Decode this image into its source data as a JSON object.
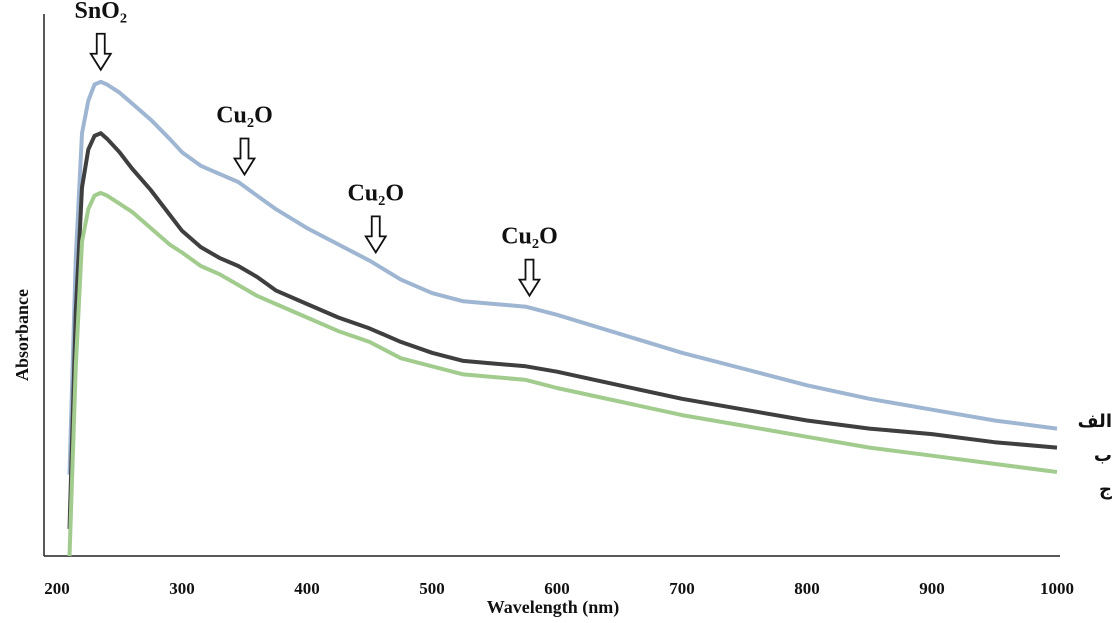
{
  "chart_data": {
    "type": "line",
    "title": "",
    "xlabel": "Wavelength (nm)",
    "ylabel": "Absorbance",
    "xlim": [
      200,
      1000
    ],
    "ylim": [
      0,
      1
    ],
    "xticks": [
      200,
      300,
      400,
      500,
      600,
      700,
      800,
      900,
      1000
    ],
    "grid": false,
    "legend": "right",
    "series": [
      {
        "name": "الف",
        "color": "#9fb6d3",
        "x": [
          210,
          215,
          220,
          225,
          230,
          235,
          240,
          250,
          260,
          275,
          290,
          300,
          315,
          330,
          345,
          360,
          375,
          400,
          425,
          450,
          475,
          500,
          525,
          550,
          575,
          600,
          650,
          700,
          750,
          800,
          850,
          900,
          950,
          1000
        ],
        "y": [
          0.15,
          0.55,
          0.78,
          0.84,
          0.87,
          0.875,
          0.87,
          0.855,
          0.835,
          0.805,
          0.77,
          0.745,
          0.72,
          0.705,
          0.69,
          0.665,
          0.64,
          0.605,
          0.575,
          0.545,
          0.51,
          0.485,
          0.47,
          0.465,
          0.46,
          0.445,
          0.41,
          0.375,
          0.345,
          0.315,
          0.29,
          0.27,
          0.25,
          0.235
        ]
      },
      {
        "name": "ب",
        "color": "#3f3f3f",
        "x": [
          210,
          215,
          220,
          225,
          230,
          235,
          240,
          250,
          260,
          275,
          290,
          300,
          315,
          330,
          345,
          360,
          375,
          400,
          425,
          450,
          475,
          500,
          525,
          550,
          575,
          600,
          650,
          700,
          750,
          800,
          850,
          900,
          950,
          1000
        ],
        "y": [
          0.05,
          0.45,
          0.68,
          0.75,
          0.775,
          0.78,
          0.77,
          0.745,
          0.715,
          0.675,
          0.63,
          0.6,
          0.57,
          0.55,
          0.535,
          0.515,
          0.49,
          0.465,
          0.44,
          0.42,
          0.395,
          0.375,
          0.36,
          0.355,
          0.35,
          0.34,
          0.315,
          0.29,
          0.27,
          0.25,
          0.235,
          0.225,
          0.21,
          0.2
        ]
      },
      {
        "name": "ج",
        "color": "#a2cc8e",
        "x": [
          210,
          215,
          220,
          225,
          230,
          235,
          240,
          250,
          260,
          275,
          290,
          300,
          315,
          330,
          345,
          360,
          375,
          400,
          425,
          450,
          475,
          500,
          525,
          550,
          575,
          600,
          650,
          700,
          750,
          800,
          850,
          900,
          950,
          1000
        ],
        "y": [
          0.0,
          0.35,
          0.58,
          0.64,
          0.665,
          0.67,
          0.665,
          0.65,
          0.635,
          0.605,
          0.575,
          0.56,
          0.535,
          0.52,
          0.5,
          0.48,
          0.465,
          0.44,
          0.415,
          0.395,
          0.365,
          0.35,
          0.335,
          0.33,
          0.325,
          0.31,
          0.285,
          0.26,
          0.24,
          0.22,
          0.2,
          0.185,
          0.17,
          0.155
        ]
      }
    ],
    "annotations": [
      {
        "text": "SnO₂",
        "x": 235,
        "series": 0
      },
      {
        "text": "Cu₂O",
        "x": 350,
        "series": 0
      },
      {
        "text": "Cu₂O",
        "x": 455,
        "series": 0
      },
      {
        "text": "Cu₂O",
        "x": 578,
        "series": 0
      }
    ]
  }
}
